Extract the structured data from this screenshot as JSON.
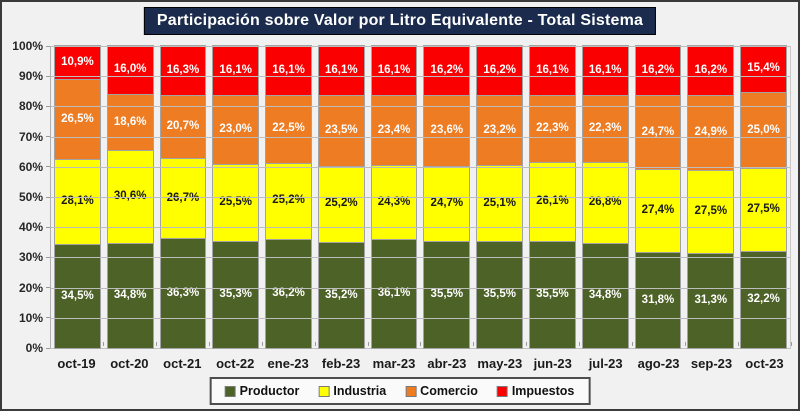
{
  "frame": {
    "background": "#f1f1f1",
    "title_bg": "#1b2b4d",
    "title_color": "#ffffff"
  },
  "chart_data": {
    "type": "bar",
    "stacked": true,
    "title": "Participación sobre Valor por Litro Equivalente - Total Sistema",
    "categories": [
      "oct-19",
      "oct-20",
      "oct-21",
      "oct-22",
      "ene-23",
      "feb-23",
      "mar-23",
      "abr-23",
      "may-23",
      "jun-23",
      "jul-23",
      "ago-23",
      "sep-23",
      "oct-23"
    ],
    "series": [
      {
        "name": "Productor",
        "color": "#4d6227",
        "label_color": "#ffffff",
        "values": [
          34.5,
          34.8,
          36.3,
          35.3,
          36.2,
          35.2,
          36.1,
          35.5,
          35.5,
          35.5,
          34.8,
          31.8,
          31.3,
          32.2
        ]
      },
      {
        "name": "Industria",
        "color": "#ffff00",
        "label_color": "#1a1a1a",
        "values": [
          28.1,
          30.6,
          26.7,
          25.5,
          25.2,
          25.2,
          24.3,
          24.7,
          25.1,
          26.1,
          26.8,
          27.4,
          27.5,
          27.5
        ]
      },
      {
        "name": "Comercio",
        "color": "#ee7c22",
        "label_color": "#ffffff",
        "values": [
          26.5,
          18.6,
          20.7,
          23.0,
          22.5,
          23.5,
          23.4,
          23.6,
          23.2,
          22.3,
          22.3,
          24.7,
          24.9,
          25.0
        ]
      },
      {
        "name": "Impuestos",
        "color": "#fb0000",
        "label_color": "#ffffff",
        "values": [
          10.9,
          16.0,
          16.3,
          16.1,
          16.1,
          16.1,
          16.1,
          16.2,
          16.2,
          16.1,
          16.1,
          16.2,
          16.2,
          15.4
        ]
      }
    ],
    "value_label_format": "comma_decimal_percent",
    "ylim": [
      0,
      100
    ],
    "y_ticks": [
      "100%",
      "90%",
      "80%",
      "70%",
      "60%",
      "50%",
      "40%",
      "30%",
      "20%",
      "10%",
      "0%"
    ],
    "grid": true,
    "legend_position": "bottom"
  }
}
